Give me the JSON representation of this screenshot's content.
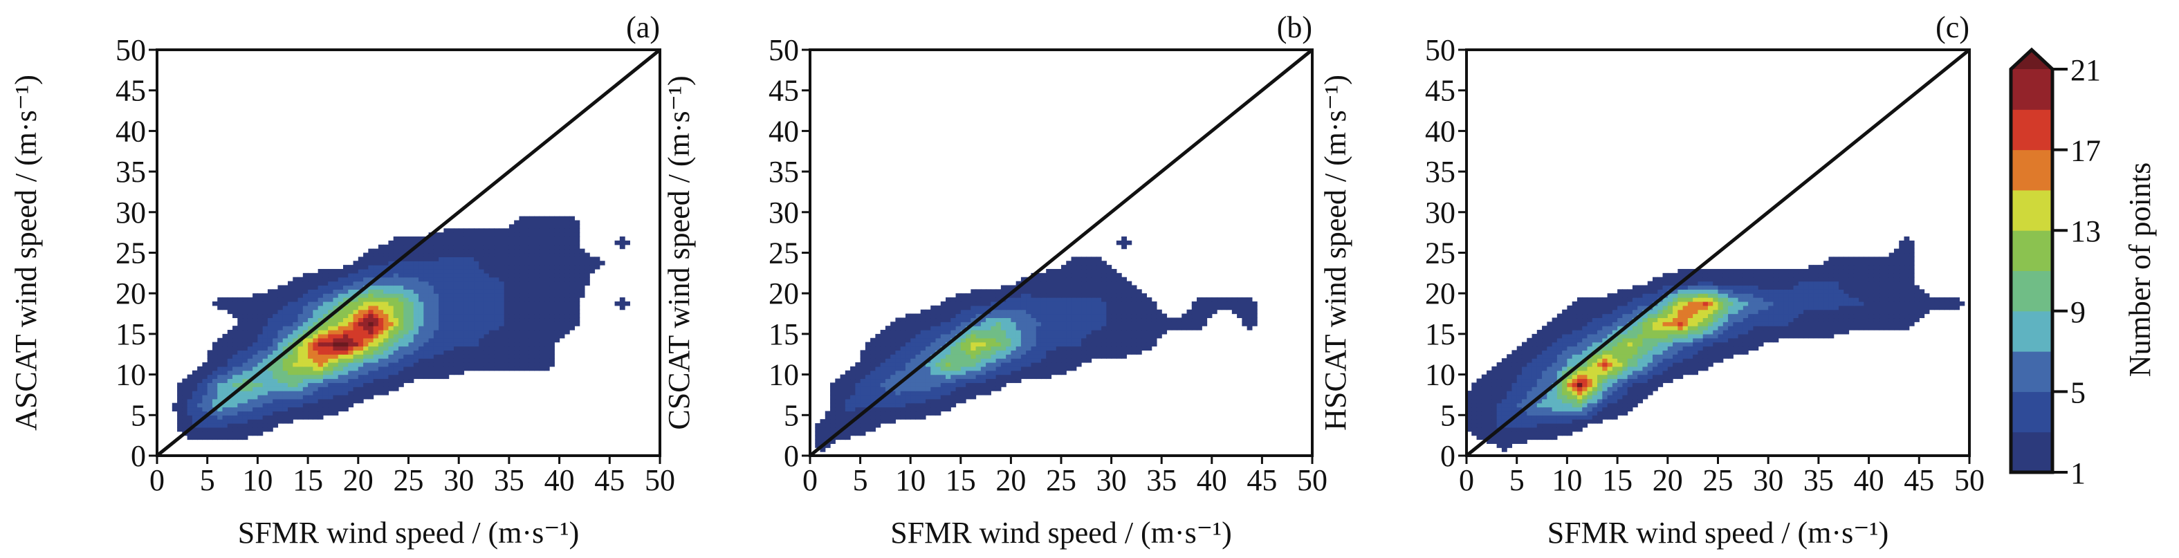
{
  "chart_data": {
    "type": "heatmap",
    "panels": [
      {
        "label": "(a)",
        "xlabel": "SFMR wind speed / (m·s⁻¹)",
        "ylabel": "ASCAT wind speed / (m·s⁻¹)",
        "xlim": [
          0,
          50
        ],
        "ylim": [
          0,
          50
        ],
        "xticks": [
          "0",
          "5",
          "10",
          "15",
          "20",
          "25",
          "30",
          "35",
          "40",
          "45",
          "50"
        ],
        "yticks": [
          "0",
          "5",
          "10",
          "15",
          "20",
          "25",
          "30",
          "35",
          "40",
          "45",
          "50"
        ],
        "reference_line": "y = x",
        "grid_bin_ms": 2.5,
        "counts_rows_from_y0": [
          [
            0,
            0,
            0,
            0,
            0,
            0,
            0,
            0,
            0,
            0,
            0,
            0,
            0,
            0,
            0,
            0,
            0,
            0,
            0,
            0
          ],
          [
            0,
            3,
            3,
            2,
            1,
            0,
            0,
            0,
            0,
            0,
            0,
            0,
            0,
            0,
            0,
            0,
            0,
            0,
            0,
            0
          ],
          [
            0,
            4,
            8,
            6,
            4,
            3,
            2,
            1,
            0,
            0,
            0,
            0,
            0,
            0,
            0,
            0,
            0,
            0,
            0,
            0
          ],
          [
            0,
            2,
            7,
            10,
            8,
            9,
            5,
            4,
            2,
            1,
            0,
            0,
            0,
            0,
            0,
            0,
            0,
            0,
            0,
            0
          ],
          [
            0,
            0,
            2,
            5,
            9,
            13,
            15,
            9,
            6,
            4,
            2,
            2,
            1,
            1,
            1,
            1,
            0,
            0,
            0,
            0
          ],
          [
            0,
            0,
            1,
            2,
            4,
            11,
            19,
            22,
            14,
            8,
            5,
            3,
            3,
            2,
            2,
            1,
            0,
            0,
            0,
            0
          ],
          [
            0,
            0,
            0,
            1,
            3,
            5,
            10,
            14,
            22,
            13,
            7,
            4,
            3,
            3,
            2,
            2,
            1,
            0,
            0,
            0
          ],
          [
            0,
            0,
            1,
            1,
            2,
            3,
            6,
            10,
            14,
            12,
            7,
            4,
            3,
            3,
            2,
            2,
            1,
            0,
            1,
            0
          ],
          [
            0,
            0,
            0,
            0,
            0,
            1,
            2,
            4,
            6,
            6,
            5,
            4,
            3,
            3,
            2,
            2,
            2,
            0,
            0,
            0
          ],
          [
            0,
            0,
            0,
            0,
            0,
            0,
            0,
            0,
            2,
            3,
            3,
            3,
            3,
            2,
            2,
            2,
            1,
            1,
            0,
            0
          ],
          [
            0,
            0,
            0,
            0,
            0,
            0,
            0,
            0,
            0,
            1,
            1,
            2,
            2,
            2,
            2,
            2,
            1,
            0,
            1,
            0
          ],
          [
            0,
            0,
            0,
            0,
            0,
            0,
            0,
            0,
            0,
            0,
            0,
            0,
            0,
            0,
            1,
            1,
            1,
            0,
            0,
            0
          ]
        ]
      },
      {
        "label": "(b)",
        "xlabel": "SFMR wind speed / (m·s⁻¹)",
        "ylabel": "CSCAT wind speed / (m·s⁻¹)",
        "xlim": [
          0,
          50
        ],
        "ylim": [
          0,
          50
        ],
        "xticks": [
          "0",
          "5",
          "10",
          "15",
          "20",
          "25",
          "30",
          "35",
          "40",
          "45",
          "50"
        ],
        "yticks": [
          "0",
          "5",
          "10",
          "15",
          "20",
          "25",
          "30",
          "35",
          "40",
          "45",
          "50"
        ],
        "reference_line": "y = x",
        "grid_bin_ms": 2.5,
        "counts_rows_from_y0": [
          [
            1,
            0,
            0,
            0,
            0,
            0,
            0,
            0,
            0,
            0,
            0,
            0,
            0,
            0,
            0,
            0,
            0,
            0,
            0,
            0
          ],
          [
            1,
            2,
            1,
            0,
            0,
            0,
            0,
            0,
            0,
            0,
            0,
            0,
            0,
            0,
            0,
            0,
            0,
            0,
            0,
            0
          ],
          [
            0,
            3,
            3,
            3,
            2,
            1,
            0,
            0,
            0,
            0,
            0,
            0,
            0,
            0,
            0,
            0,
            0,
            0,
            0,
            0
          ],
          [
            0,
            2,
            4,
            6,
            6,
            4,
            2,
            1,
            0,
            0,
            0,
            0,
            0,
            0,
            0,
            0,
            0,
            0,
            0,
            0
          ],
          [
            0,
            0,
            2,
            4,
            6,
            11,
            9,
            5,
            3,
            2,
            1,
            0,
            0,
            0,
            0,
            0,
            0,
            0,
            0,
            0
          ],
          [
            0,
            0,
            1,
            2,
            4,
            7,
            14,
            11,
            6,
            3,
            3,
            2,
            2,
            1,
            0,
            0,
            0,
            0,
            0,
            0
          ],
          [
            0,
            0,
            0,
            1,
            2,
            3,
            6,
            9,
            6,
            4,
            3,
            3,
            2,
            1,
            1,
            1,
            0,
            1,
            0,
            0
          ],
          [
            0,
            0,
            0,
            0,
            0,
            1,
            2,
            3,
            4,
            3,
            3,
            3,
            2,
            1,
            0,
            1,
            1,
            1,
            0,
            0
          ],
          [
            0,
            0,
            0,
            0,
            0,
            0,
            0,
            0,
            1,
            2,
            2,
            2,
            1,
            0,
            0,
            0,
            0,
            0,
            0,
            0
          ],
          [
            0,
            0,
            0,
            0,
            0,
            0,
            0,
            0,
            0,
            0,
            1,
            1,
            0,
            0,
            0,
            0,
            0,
            0,
            0,
            0
          ],
          [
            0,
            0,
            0,
            0,
            0,
            0,
            0,
            0,
            0,
            0,
            0,
            0,
            1,
            0,
            0,
            0,
            0,
            0,
            0,
            0
          ],
          [
            0,
            0,
            0,
            0,
            0,
            0,
            0,
            0,
            0,
            0,
            0,
            0,
            0,
            0,
            0,
            0,
            0,
            0,
            0,
            0
          ]
        ]
      },
      {
        "label": "(c)",
        "xlabel": "SFMR wind speed / (m·s⁻¹)",
        "ylabel": "HSCAT wind speed / (m·s⁻¹)",
        "xlim": [
          0,
          50
        ],
        "ylim": [
          0,
          50
        ],
        "xticks": [
          "0",
          "5",
          "10",
          "15",
          "20",
          "25",
          "30",
          "35",
          "40",
          "45",
          "50"
        ],
        "yticks": [
          "0",
          "5",
          "10",
          "15",
          "20",
          "25",
          "30",
          "35",
          "40",
          "45",
          "50"
        ],
        "reference_line": "y = x",
        "grid_bin_ms": 2.5,
        "counts_rows_from_y0": [
          [
            0,
            1,
            0,
            0,
            0,
            0,
            0,
            0,
            0,
            0,
            0,
            0,
            0,
            0,
            0,
            0,
            0,
            0,
            0,
            0
          ],
          [
            2,
            3,
            3,
            2,
            1,
            0,
            0,
            0,
            0,
            0,
            0,
            0,
            0,
            0,
            0,
            0,
            0,
            0,
            0,
            0
          ],
          [
            2,
            3,
            6,
            8,
            9,
            3,
            1,
            0,
            0,
            0,
            0,
            0,
            0,
            0,
            0,
            0,
            0,
            0,
            0,
            0
          ],
          [
            1,
            2,
            4,
            7,
            21,
            8,
            3,
            1,
            0,
            0,
            0,
            0,
            0,
            0,
            0,
            0,
            0,
            0,
            0,
            0
          ],
          [
            0,
            1,
            3,
            5,
            9,
            17,
            10,
            5,
            2,
            1,
            0,
            0,
            0,
            0,
            0,
            0,
            0,
            0,
            0,
            0
          ],
          [
            0,
            0,
            1,
            3,
            5,
            8,
            13,
            9,
            6,
            3,
            2,
            1,
            0,
            0,
            0,
            0,
            0,
            0,
            0,
            0
          ],
          [
            0,
            0,
            0,
            1,
            2,
            4,
            7,
            14,
            17,
            11,
            5,
            3,
            3,
            2,
            2,
            1,
            1,
            1,
            0,
            0
          ],
          [
            0,
            0,
            0,
            0,
            1,
            1,
            3,
            5,
            14,
            17,
            9,
            6,
            4,
            3,
            3,
            3,
            2,
            2,
            1,
            1
          ],
          [
            0,
            0,
            0,
            0,
            0,
            0,
            0,
            1,
            2,
            3,
            2,
            2,
            2,
            3,
            3,
            2,
            2,
            1,
            0,
            0
          ],
          [
            0,
            0,
            0,
            0,
            0,
            0,
            0,
            0,
            0,
            0,
            0,
            0,
            0,
            0,
            1,
            1,
            1,
            1,
            0,
            0
          ],
          [
            0,
            0,
            0,
            0,
            0,
            0,
            0,
            0,
            0,
            0,
            0,
            0,
            0,
            0,
            0,
            0,
            0,
            1,
            0,
            0
          ],
          [
            0,
            0,
            0,
            0,
            0,
            0,
            0,
            0,
            0,
            0,
            0,
            0,
            0,
            0,
            0,
            0,
            0,
            0,
            0,
            0
          ]
        ]
      }
    ],
    "colorbar": {
      "title": "Number of points",
      "levels": [
        1,
        3,
        5,
        7,
        9,
        11,
        13,
        15,
        17,
        19,
        21
      ],
      "tick_labels": [
        "1",
        "5",
        "9",
        "13",
        "17",
        "21"
      ],
      "extend": "max",
      "colors": [
        "#2c3a7c",
        "#2f4b98",
        "#4269ab",
        "#5fb3c1",
        "#70bd86",
        "#8bc250",
        "#cfd93b",
        "#df7a2b",
        "#d33a29",
        "#93232a"
      ],
      "over_color": "#6b1a20"
    }
  }
}
